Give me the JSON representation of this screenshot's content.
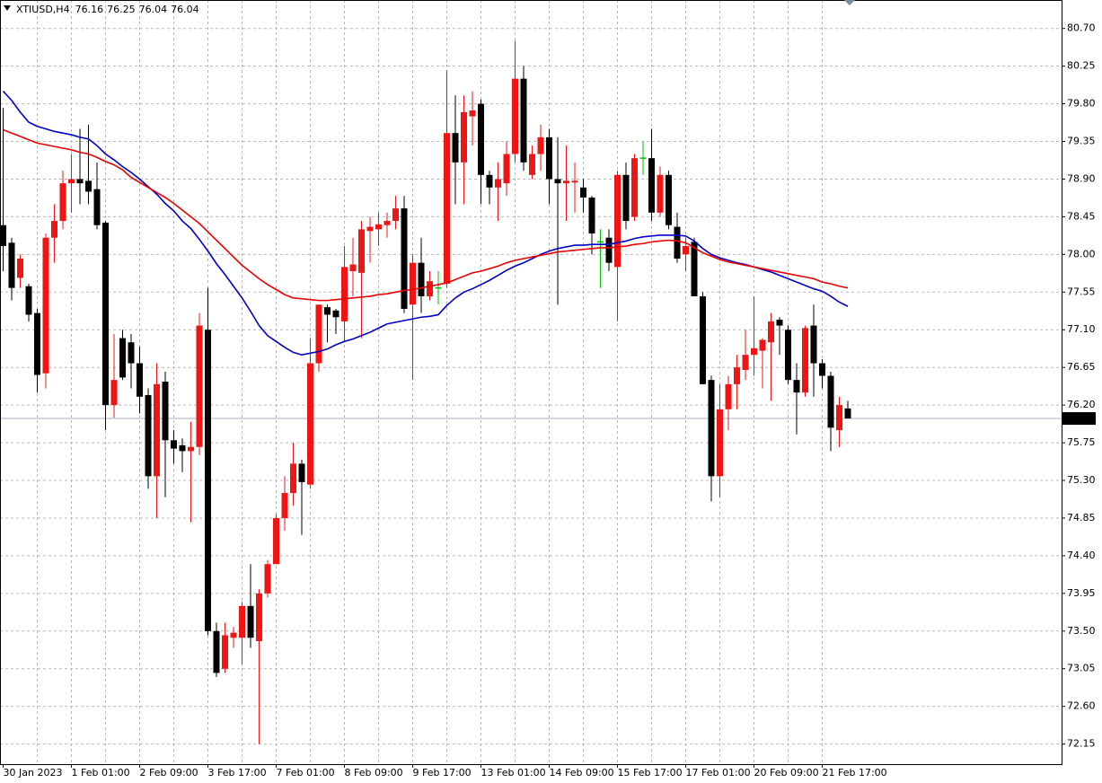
{
  "chart_data": {
    "type": "candlestick",
    "symbol": "XTIUSD,H4",
    "categories": [
      "30 Jan 2023",
      null,
      null,
      null,
      null,
      null,
      null,
      null,
      "1 Feb 01:00",
      null,
      null,
      null,
      null,
      null,
      null,
      null,
      "2 Feb 09:00",
      null,
      null,
      null,
      null,
      null,
      null,
      null,
      "3 Feb 17:00",
      null,
      null,
      null,
      null,
      null,
      null,
      null,
      "7 Feb 01:00",
      null,
      null,
      null,
      null,
      null,
      null,
      null,
      "8 Feb 09:00",
      null,
      null,
      null,
      null,
      null,
      null,
      null,
      "9 Feb 17:00",
      null,
      null,
      null,
      null,
      null,
      null,
      null,
      "13 Feb 01:00",
      null,
      null,
      null,
      null,
      null,
      null,
      null,
      "14 Feb 09:00",
      null,
      null,
      null,
      null,
      null,
      null,
      null,
      "15 Feb 17:00",
      null,
      null,
      null,
      null,
      null,
      null,
      null,
      "17 Feb 01:00",
      null,
      null,
      null,
      null,
      null,
      null,
      null,
      "20 Feb 09:00",
      null,
      null,
      null,
      null,
      null,
      null,
      null,
      "21 Feb 17:00",
      null,
      null,
      null
    ],
    "open": [
      78.35,
      78.14,
      77.72,
      77.62,
      77.3,
      76.58,
      78.2,
      78.4,
      78.85,
      78.9,
      78.88,
      78.78,
      78.38,
      76.2,
      77.0,
      76.95,
      76.7,
      76.32,
      75.35,
      76.48,
      75.78,
      75.72,
      75.65,
      75.7,
      77.1,
      73.5,
      73.05,
      73.42,
      73.42,
      73.8,
      73.38,
      73.95,
      74.3,
      74.85,
      75.15,
      75.5,
      75.25,
      76.7,
      77.37,
      77.33,
      77.2,
      77.8,
      77.78,
      78.28,
      78.3,
      78.35,
      78.4,
      78.55,
      77.4,
      77.9,
      77.5,
      77.6,
      77.65,
      79.45,
      79.1,
      79.65,
      79.8,
      78.95,
      78.8,
      78.85,
      79.2,
      80.1,
      78.95,
      79.2,
      79.4,
      78.9,
      78.85,
      78.86,
      78.8,
      78.68,
      78.15,
      78.2,
      77.85,
      78.95,
      78.45,
      79.15,
      79.15,
      78.5,
      78.95,
      78.33,
      78.0,
      78.15,
      77.5,
      76.5,
      75.35,
      76.15,
      76.45,
      76.62,
      76.8,
      76.85,
      76.95,
      77.22,
      77.1,
      76.5,
      76.35,
      77.15,
      76.7,
      76.55,
      75.9,
      76.16
    ],
    "high": [
      79.75,
      78.2,
      78.0,
      77.65,
      77.35,
      78.25,
      78.6,
      79.0,
      79.2,
      79.5,
      79.55,
      79.1,
      78.4,
      77.05,
      77.1,
      77.05,
      76.9,
      76.4,
      76.7,
      76.6,
      75.9,
      75.8,
      76.0,
      77.3,
      77.6,
      73.6,
      73.6,
      73.55,
      73.85,
      74.3,
      74.0,
      74.35,
      74.9,
      75.35,
      75.75,
      75.55,
      77.0,
      77.4,
      77.4,
      77.35,
      78.1,
      78.2,
      78.4,
      78.45,
      78.5,
      78.5,
      78.7,
      78.7,
      78.0,
      78.2,
      77.8,
      77.8,
      80.2,
      79.9,
      79.9,
      79.95,
      79.85,
      79.0,
      79.1,
      79.35,
      80.55,
      80.25,
      79.3,
      79.55,
      79.5,
      79.4,
      79.3,
      79.1,
      78.9,
      78.7,
      78.3,
      78.3,
      79.0,
      79.1,
      79.2,
      79.35,
      79.5,
      79.05,
      79.0,
      78.5,
      78.2,
      78.2,
      77.55,
      76.55,
      76.45,
      76.55,
      76.8,
      77.1,
      77.5,
      77.0,
      77.3,
      77.25,
      77.15,
      76.7,
      77.15,
      77.4,
      76.75,
      76.6,
      76.3,
      76.25
    ],
    "low": [
      77.8,
      77.45,
      77.6,
      77.2,
      76.35,
      76.4,
      77.9,
      78.3,
      78.5,
      78.6,
      78.6,
      78.3,
      75.9,
      76.05,
      76.5,
      76.4,
      76.1,
      75.2,
      74.85,
      75.1,
      75.5,
      75.4,
      74.8,
      75.6,
      73.45,
      72.95,
      73.0,
      73.3,
      73.1,
      73.3,
      72.15,
      73.9,
      74.3,
      74.7,
      75.0,
      74.65,
      75.2,
      76.6,
      76.95,
      77.05,
      76.95,
      77.5,
      77.0,
      77.9,
      78.1,
      78.2,
      78.3,
      77.3,
      76.5,
      77.3,
      77.45,
      77.4,
      77.6,
      78.6,
      78.6,
      79.3,
      78.6,
      78.6,
      78.4,
      78.7,
      79.1,
      79.0,
      78.9,
      79.0,
      78.6,
      77.4,
      78.4,
      78.5,
      78.5,
      78.0,
      77.6,
      77.8,
      77.2,
      78.3,
      78.4,
      78.95,
      78.4,
      78.45,
      78.3,
      77.9,
      77.8,
      77.5,
      76.45,
      75.05,
      75.1,
      75.9,
      76.15,
      76.5,
      76.55,
      76.4,
      76.25,
      76.8,
      76.45,
      75.85,
      76.3,
      76.3,
      76.4,
      75.65,
      75.7,
      76.04
    ],
    "close": [
      78.1,
      77.6,
      77.95,
      77.28,
      76.56,
      78.2,
      78.4,
      78.85,
      78.9,
      78.85,
      78.75,
      78.35,
      76.2,
      76.5,
      76.53,
      76.7,
      76.3,
      75.35,
      76.45,
      75.78,
      75.68,
      75.65,
      75.7,
      77.15,
      73.5,
      73.0,
      73.45,
      73.48,
      73.8,
      73.42,
      73.95,
      74.3,
      74.85,
      75.15,
      75.5,
      75.28,
      76.7,
      77.4,
      77.28,
      77.25,
      77.85,
      77.88,
      78.3,
      78.33,
      78.36,
      78.4,
      78.55,
      77.35,
      77.9,
      77.5,
      77.68,
      77.6,
      79.45,
      79.1,
      79.7,
      79.72,
      78.95,
      78.8,
      78.9,
      79.2,
      80.1,
      79.1,
      79.2,
      79.4,
      78.9,
      78.85,
      78.88,
      78.88,
      78.68,
      78.25,
      78.15,
      77.9,
      78.95,
      78.4,
      79.15,
      79.15,
      78.5,
      78.95,
      78.35,
      77.95,
      78.1,
      77.5,
      76.45,
      75.35,
      76.15,
      76.45,
      76.65,
      76.8,
      76.88,
      76.98,
      77.2,
      77.15,
      76.5,
      76.35,
      77.12,
      76.7,
      76.55,
      75.93,
      76.2,
      76.04
    ],
    "up_color": "#f01414",
    "down_color": "#000000",
    "doji_color": "#00c000",
    "moving_averages": [
      {
        "color": "#0000c8",
        "values": [
          79.95,
          79.84,
          79.7,
          79.58,
          79.53,
          79.5,
          79.47,
          79.45,
          79.43,
          79.4,
          79.38,
          79.3,
          79.2,
          79.13,
          79.05,
          78.98,
          78.9,
          78.81,
          78.72,
          78.61,
          78.52,
          78.4,
          78.31,
          78.18,
          78.04,
          77.89,
          77.76,
          77.62,
          77.48,
          77.32,
          77.15,
          77.03,
          76.96,
          76.89,
          76.83,
          76.8,
          76.82,
          76.84,
          76.87,
          76.92,
          76.96,
          76.99,
          77.03,
          77.07,
          77.12,
          77.17,
          77.19,
          77.21,
          77.23,
          77.25,
          77.26,
          77.28,
          77.39,
          77.48,
          77.55,
          77.59,
          77.64,
          77.69,
          77.75,
          77.81,
          77.86,
          77.9,
          77.95,
          78.0,
          78.04,
          78.07,
          78.09,
          78.11,
          78.11,
          78.12,
          78.12,
          78.12,
          78.14,
          78.16,
          78.19,
          78.21,
          78.22,
          78.23,
          78.23,
          78.23,
          78.22,
          78.16,
          78.07,
          78.0,
          77.96,
          77.93,
          77.9,
          77.88,
          77.85,
          77.82,
          77.79,
          77.75,
          77.71,
          77.67,
          77.63,
          77.59,
          77.56,
          77.5,
          77.43,
          77.38
        ]
      },
      {
        "color": "#ee0000",
        "values": [
          79.49,
          79.45,
          79.41,
          79.37,
          79.33,
          79.31,
          79.29,
          79.27,
          79.25,
          79.22,
          79.2,
          79.16,
          79.11,
          79.07,
          79.01,
          78.92,
          78.86,
          78.8,
          78.74,
          78.68,
          78.61,
          78.53,
          78.45,
          78.37,
          78.27,
          78.17,
          78.07,
          77.97,
          77.87,
          77.79,
          77.71,
          77.64,
          77.58,
          77.52,
          77.48,
          77.47,
          77.46,
          77.45,
          77.45,
          77.46,
          77.47,
          77.48,
          77.49,
          77.5,
          77.52,
          77.53,
          77.55,
          77.57,
          77.58,
          77.6,
          77.62,
          77.64,
          77.66,
          77.7,
          77.74,
          77.78,
          77.8,
          77.83,
          77.86,
          77.9,
          77.93,
          77.95,
          77.97,
          77.99,
          78.01,
          78.03,
          78.04,
          78.05,
          78.06,
          78.07,
          78.08,
          78.08,
          78.09,
          78.1,
          78.12,
          78.13,
          78.15,
          78.16,
          78.17,
          78.16,
          78.14,
          78.08,
          78.02,
          77.98,
          77.94,
          77.91,
          77.89,
          77.87,
          77.85,
          77.83,
          77.81,
          77.79,
          77.77,
          77.75,
          77.73,
          77.71,
          77.67,
          77.65,
          77.62,
          77.6
        ]
      }
    ],
    "ylim": [
      71.91,
      81.04
    ],
    "yticks": [
      {
        "value": 80.7,
        "label": "80.70"
      },
      80.25,
      {
        "value": 79.8,
        "label": "79.80"
      },
      79.35,
      {
        "value": 78.9,
        "label": "78.90"
      },
      78.45,
      {
        "value": 78.0,
        "label": "78.00"
      },
      77.55,
      {
        "value": 77.1,
        "label": "77.10"
      },
      76.65,
      {
        "value": 76.2,
        "label": "76.20"
      },
      75.75,
      {
        "value": 75.3,
        "label": "75.30"
      },
      74.85,
      {
        "value": 74.4,
        "label": "74.40"
      },
      73.95,
      {
        "value": 73.5,
        "label": "73.50"
      },
      {
        "value": 73.05,
        "label": "73.05"
      },
      {
        "value": 72.6,
        "label": "72.60"
      },
      72.15
    ],
    "current_price": 76.04,
    "current_price_color": "#a8b0c8",
    "grid": true
  }
}
